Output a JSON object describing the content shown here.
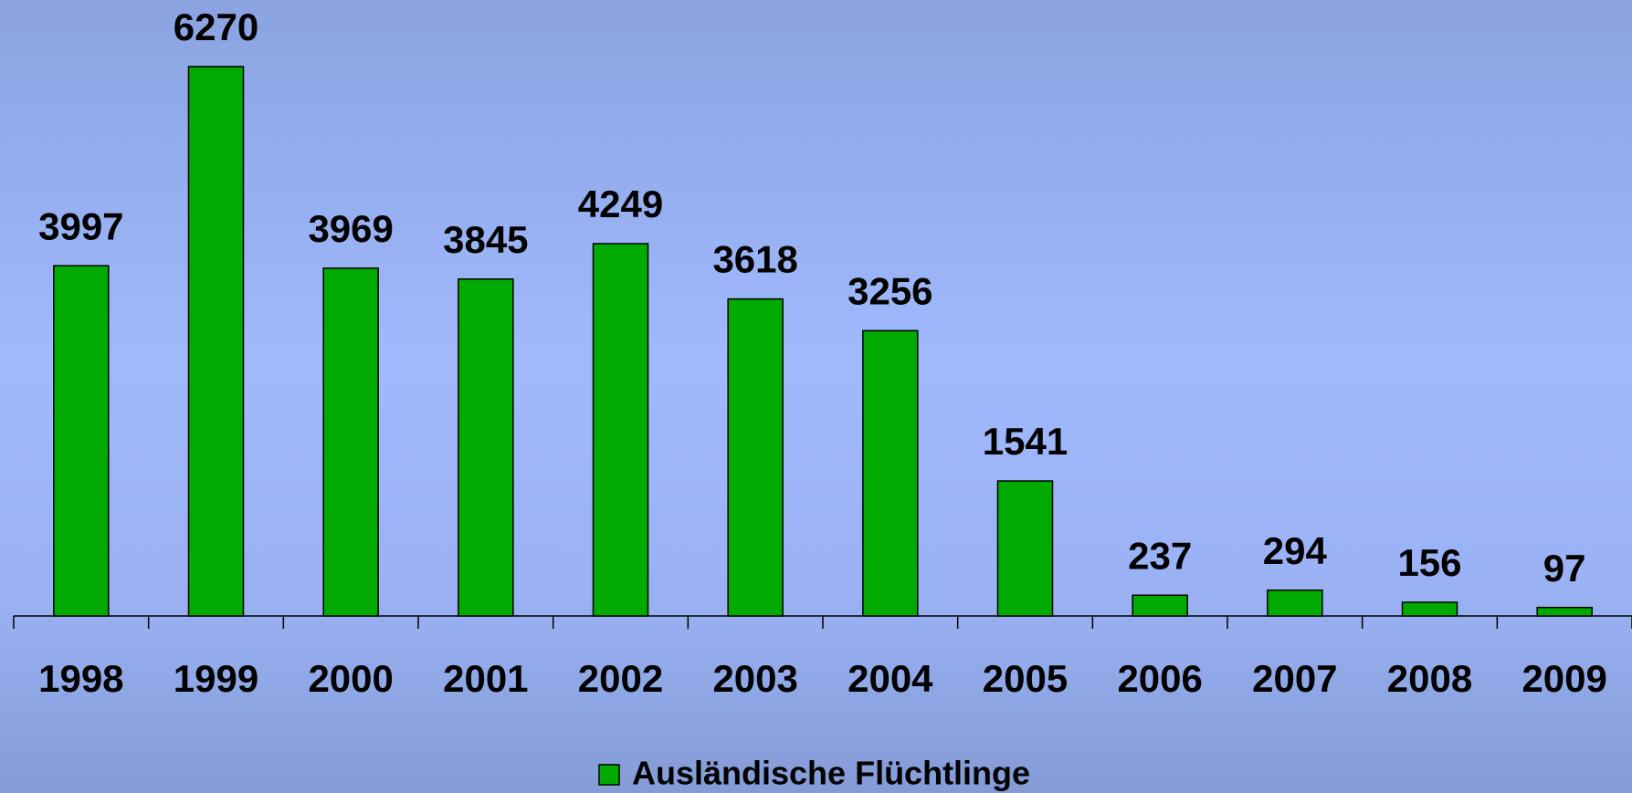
{
  "chart_data": {
    "type": "bar",
    "categories": [
      "1998",
      "1999",
      "2000",
      "2001",
      "2002",
      "2003",
      "2004",
      "2005",
      "2006",
      "2007",
      "2008",
      "2009"
    ],
    "series": [
      {
        "name": "Ausländische Flüchtlinge",
        "color": "#00aa00",
        "values": [
          3997,
          6270,
          3969,
          3845,
          4249,
          3618,
          3256,
          1541,
          237,
          294,
          156,
          97
        ]
      }
    ],
    "legend": "bottom"
  }
}
